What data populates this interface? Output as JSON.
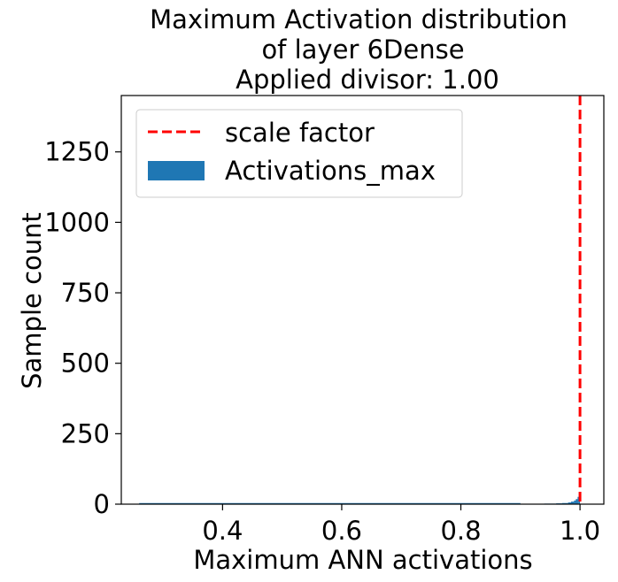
{
  "chart_data": {
    "type": "bar",
    "title_lines": [
      "Maximum Activation distribution",
      "of layer 6Dense",
      "Applied divisor: 1.00"
    ],
    "xlabel": "Maximum ANN activations",
    "ylabel": "Sample count",
    "xlim": [
      0.23,
      1.04
    ],
    "ylim": [
      0,
      1450
    ],
    "xticks": [
      0.4,
      0.6,
      0.8,
      1.0
    ],
    "xtick_labels": [
      "0.4",
      "0.6",
      "0.8",
      "1.0"
    ],
    "yticks": [
      0,
      250,
      500,
      750,
      1000,
      1250
    ],
    "ytick_labels": [
      "0",
      "250",
      "500",
      "750",
      "1000",
      "1250"
    ],
    "grid": false,
    "legend_placement": "top-left",
    "legend": [
      "scale factor",
      "Activations_max"
    ],
    "scale_factor": 1.0,
    "histogram": {
      "name": "Activations_max",
      "color": "#1f77b4",
      "bins": [
        {
          "x0": 0.26,
          "x1": 0.9,
          "count": 0
        },
        {
          "x0": 0.9,
          "x1": 0.92,
          "count": 1
        },
        {
          "x0": 0.92,
          "x1": 0.94,
          "count": 1
        },
        {
          "x0": 0.94,
          "x1": 0.95,
          "count": 2
        },
        {
          "x0": 0.95,
          "x1": 0.96,
          "count": 2
        },
        {
          "x0": 0.96,
          "x1": 0.97,
          "count": 3
        },
        {
          "x0": 0.97,
          "x1": 0.98,
          "count": 4
        },
        {
          "x0": 0.98,
          "x1": 0.985,
          "count": 6
        },
        {
          "x0": 0.985,
          "x1": 0.99,
          "count": 9
        },
        {
          "x0": 0.99,
          "x1": 0.993,
          "count": 13
        },
        {
          "x0": 0.993,
          "x1": 0.996,
          "count": 18
        },
        {
          "x0": 0.996,
          "x1": 0.998,
          "count": 26
        },
        {
          "x0": 0.998,
          "x1": 1.0,
          "count": 40
        }
      ]
    },
    "scale_line_color": "#ff0000"
  }
}
